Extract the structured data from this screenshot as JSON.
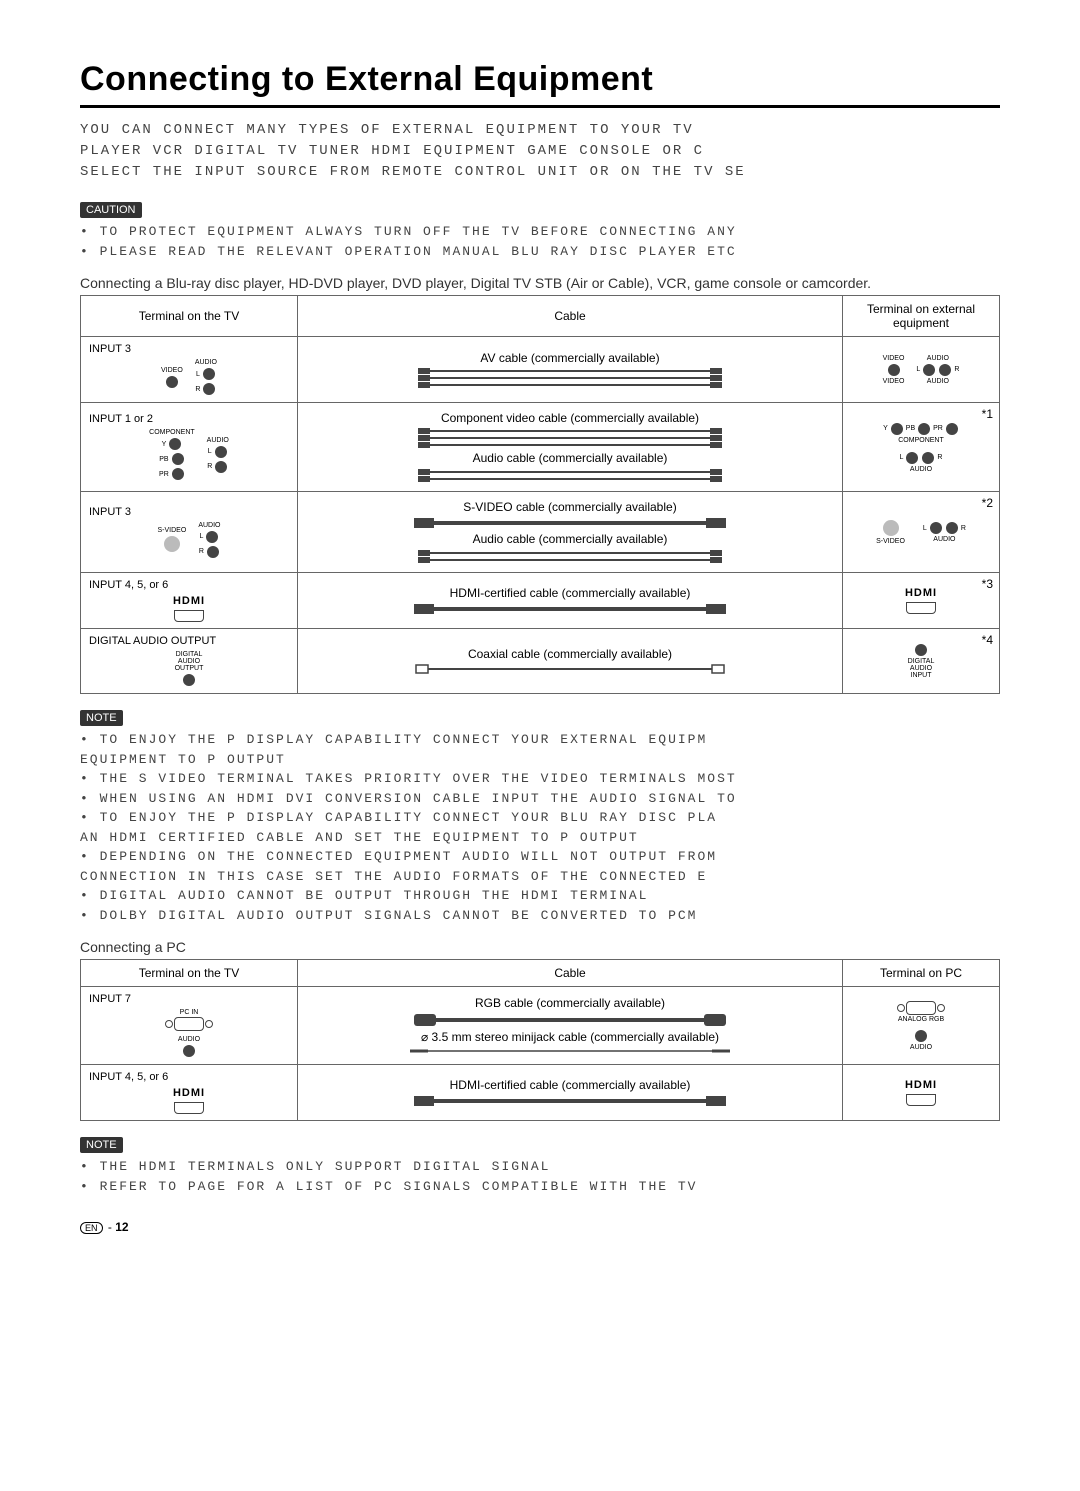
{
  "title": "Connecting to External Equipment",
  "intro": "YOU CAN CONNECT MANY TYPES OF EXTERNAL EQUIPMENT TO YOUR TV\nPLAYER  VCR  DIGITAL TV TUNER  HDMI EQUIPMENT  GAME CONSOLE OR C\nSELECT THE INPUT SOURCE FROM REMOTE CONTROL UNIT OR ON THE TV  SE",
  "caution_label": "CAUTION",
  "caution_text": "• TO PROTECT EQUIPMENT  ALWAYS TURN OFF THE TV BEFORE CONNECTING ANY\n• PLEASE READ THE RELEVANT OPERATION MANUAL  BLU RAY DISC PLAYER  ETC",
  "section1_sub": "Connecting a Blu-ray disc player, HD-DVD player, DVD player, Digital TV STB (Air or Cable), VCR, game console or camcorder.",
  "headers": {
    "tv": "Terminal on the TV",
    "cable": "Cable",
    "ext": "Terminal on external equipment",
    "pc": "Terminal on PC"
  },
  "rows1": [
    {
      "input": "INPUT 3",
      "termtype": "av",
      "cables": [
        "AV cable (commercially available)"
      ],
      "ext_type": "av",
      "note": ""
    },
    {
      "input": "INPUT 1 or 2",
      "termtype": "component",
      "cables": [
        "Component video cable (commercially available)",
        "Audio cable (commercially available)"
      ],
      "ext_type": "component",
      "note": "*1"
    },
    {
      "input": "INPUT 3",
      "termtype": "svideo",
      "cables": [
        "S-VIDEO cable (commercially available)",
        "Audio cable (commercially available)"
      ],
      "ext_type": "svideo",
      "note": "*2"
    },
    {
      "input": "INPUT 4, 5, or 6",
      "termtype": "hdmi",
      "cables": [
        "HDMI-certified cable (commercially available)"
      ],
      "ext_type": "hdmi",
      "note": "*3"
    },
    {
      "input": "DIGITAL AUDIO OUTPUT",
      "termtype": "digital",
      "cables": [
        "Coaxial cable (commercially available)"
      ],
      "ext_type": "digital_in",
      "note": "*4"
    }
  ],
  "note_label": "NOTE",
  "notes1": "• TO ENJOY THE     P DISPLAY CAPABILITY  CONNECT YOUR EXTERNAL EQUIPM\n  EQUIPMENT TO     P OUTPUT\n• THE S VIDEO TERMINAL TAKES PRIORITY OVER THE VIDEO TERMINALS  MOST\n• WHEN USING AN HDMI DVI CONVERSION CABLE  INPUT THE AUDIO SIGNAL TO\n• TO ENJOY THE     P DISPLAY CAPABILITY  CONNECT YOUR BLU RAY DISC PLA\n  AN HDMI CERTIFIED CABLE AND SET THE EQUIPMENT TO     P OUTPUT\n• DEPENDING ON THE CONNECTED EQUIPMENT  AUDIO WILL NOT OUTPUT FROM\n  CONNECTION  IN THIS CASE  SET THE AUDIO FORMATS OF THE CONNECTED E\n• DIGITAL AUDIO CANNOT BE OUTPUT THROUGH THE HDMI TERMINAL\n• DOLBY DIGITAL AUDIO OUTPUT SIGNALS CANNOT BE CONVERTED TO PCM",
  "section2_sub": "Connecting a PC",
  "rows2": [
    {
      "input": "INPUT 7",
      "termtype": "pcin",
      "cables": [
        "RGB cable (commercially available)",
        "⌀ 3.5 mm stereo minijack cable (commercially available)"
      ],
      "ext_type": "pcin",
      "note": ""
    },
    {
      "input": "INPUT 4, 5, or 6",
      "termtype": "hdmi",
      "cables": [
        "HDMI-certified cable (commercially available)"
      ],
      "ext_type": "hdmi",
      "note": ""
    }
  ],
  "notes2": "• THE HDMI TERMINALS ONLY SUPPORT DIGITAL SIGNAL\n• REFER TO PAGE    FOR A LIST OF PC SIGNALS COMPATIBLE WITH THE TV",
  "pagefoot_en": "EN",
  "pagefoot_num": "12",
  "port_labels": {
    "video": "VIDEO",
    "audio": "AUDIO",
    "L": "L",
    "R": "R",
    "component": "COMPONENT",
    "Y": "Y",
    "Pb": "PB",
    "Pr": "PR",
    "svideo": "S-VIDEO",
    "hdmi": "HDMI",
    "digital_out": "DIGITAL\nAUDIO\nOUTPUT",
    "digital_in": "DIGITAL\nAUDIO\nINPUT",
    "pcin": "PC IN",
    "analogrgb": "ANALOG RGB"
  }
}
